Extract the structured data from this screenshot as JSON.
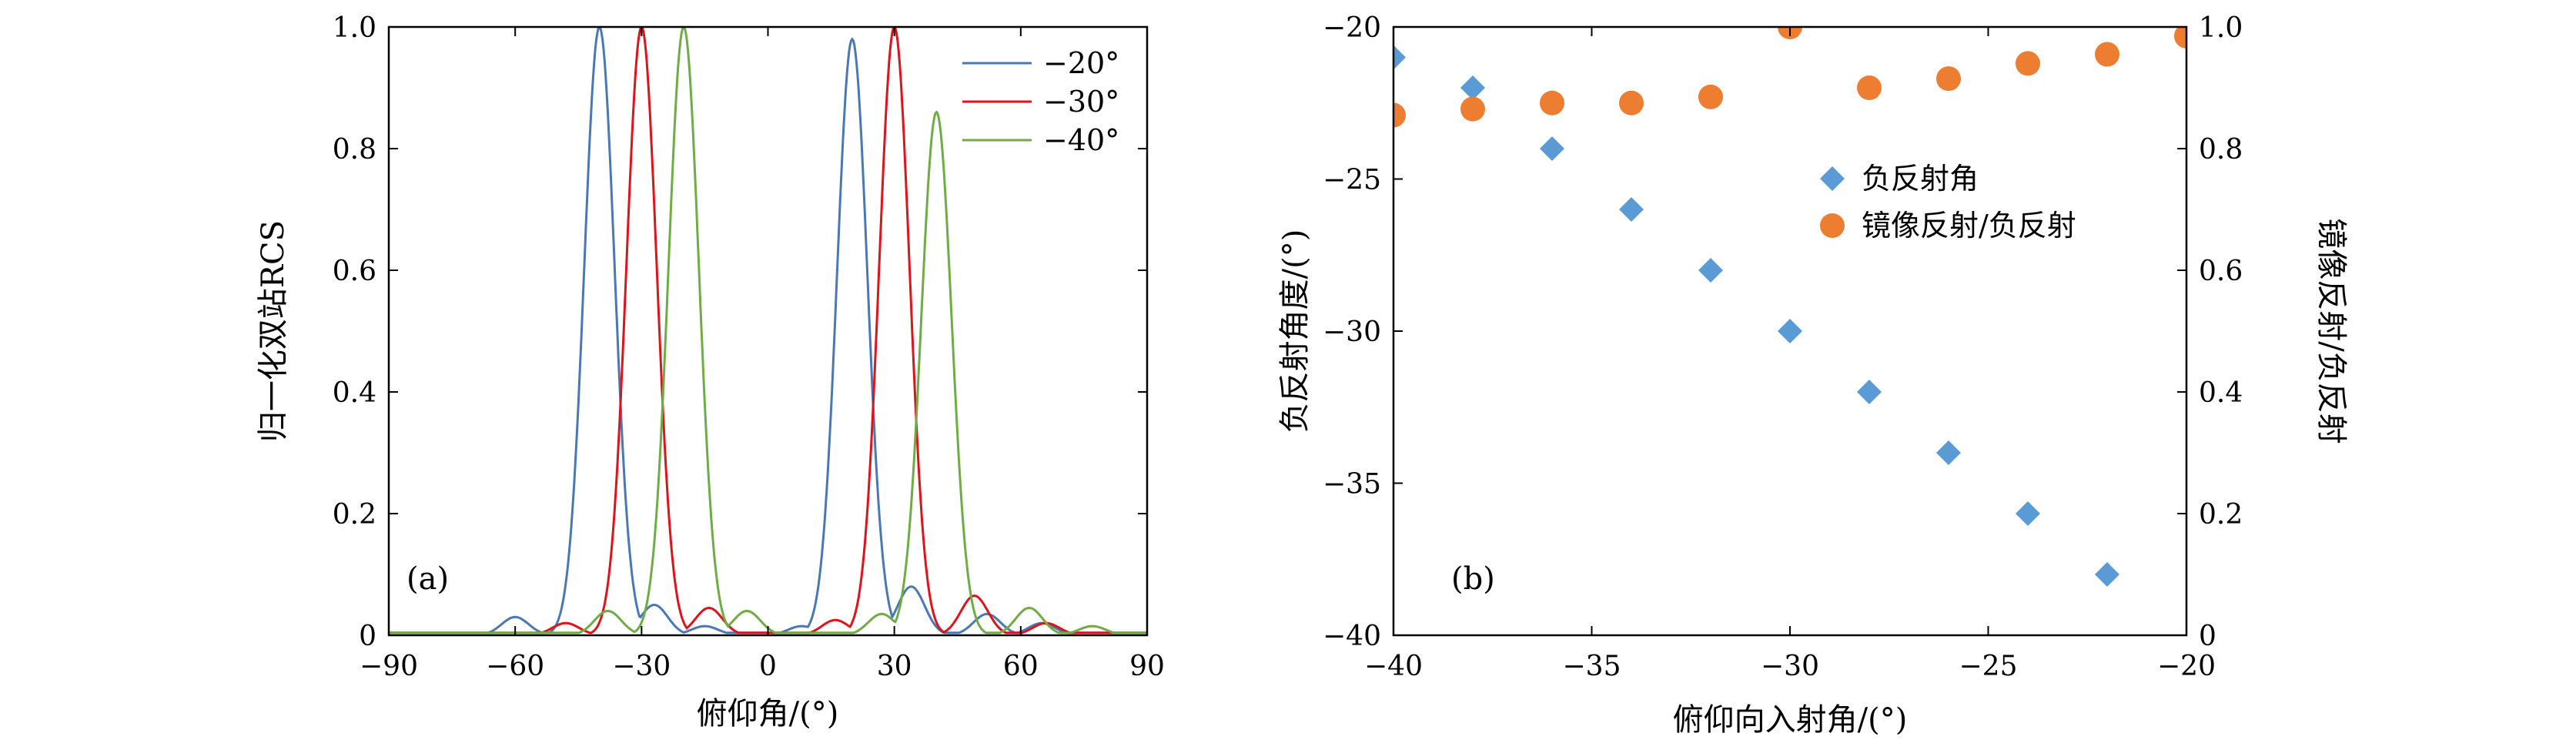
{
  "colors": {
    "blue": "#4a78b4",
    "red": "#e0121a",
    "green": "#6fac45",
    "blue_marker": "#5b9bd5",
    "orange_marker": "#ed7d31"
  },
  "chart_data": [
    {
      "type": "line",
      "panel_label": "(a)",
      "xlabel": "俯仰角/(°)",
      "ylabel": "归一化双站RCS",
      "xlim": [
        -90,
        90
      ],
      "ylim": [
        0,
        1.0
      ],
      "xticks": [
        -90,
        -60,
        -30,
        0,
        30,
        60,
        90
      ],
      "xtick_labels": [
        "−90",
        "−60",
        "−30",
        "0",
        "30",
        "60",
        "90"
      ],
      "yticks": [
        0,
        0.2,
        0.4,
        0.6,
        0.8,
        1.0
      ],
      "ytick_labels": [
        "0",
        "0.2",
        "0.4",
        "0.6",
        "0.8",
        "1.0"
      ],
      "legend_position": "top-right",
      "series": [
        {
          "name": "−20°",
          "color": "#4a78b4",
          "peaks": [
            [
              -40,
              1.0
            ],
            [
              20,
              0.98
            ]
          ],
          "sidelobes": [
            [
              -60,
              0.03
            ],
            [
              -27,
              0.05
            ],
            [
              -15,
              0.015
            ],
            [
              8,
              0.015
            ],
            [
              34,
              0.08
            ],
            [
              52,
              0.035
            ],
            [
              65,
              0.02
            ]
          ]
        },
        {
          "name": "−30°",
          "color": "#e0121a",
          "peaks": [
            [
              -30,
              1.0
            ],
            [
              30,
              1.0
            ]
          ],
          "sidelobes": [
            [
              -48,
              0.02
            ],
            [
              -14,
              0.045
            ],
            [
              16,
              0.025
            ],
            [
              49,
              0.065
            ],
            [
              66,
              0.02
            ]
          ]
        },
        {
          "name": "−40°",
          "color": "#6fac45",
          "peaks": [
            [
              -20,
              1.0
            ],
            [
              40,
              0.86
            ]
          ],
          "sidelobes": [
            [
              -38,
              0.04
            ],
            [
              -5,
              0.04
            ],
            [
              27,
              0.035
            ],
            [
              62,
              0.045
            ],
            [
              77,
              0.015
            ]
          ]
        }
      ]
    },
    {
      "type": "scatter",
      "panel_label": "(b)",
      "xlabel": "俯仰向入射角/(°)",
      "ylabel": "负反射角度/(°)",
      "y2label": "镜像反射/负反射",
      "xlim": [
        -40,
        -20
      ],
      "ylim": [
        -40,
        -20
      ],
      "y2lim": [
        0,
        1.0
      ],
      "xticks": [
        -40,
        -35,
        -30,
        -25,
        -20
      ],
      "xtick_labels": [
        "−40",
        "−35",
        "−30",
        "−25",
        "−20"
      ],
      "yticks": [
        -40,
        -35,
        -30,
        -25,
        -20
      ],
      "ytick_labels": [
        "−40",
        "−35",
        "−30",
        "−25",
        "−20"
      ],
      "y2ticks": [
        0,
        0.2,
        0.4,
        0.6,
        0.8,
        1.0
      ],
      "y2tick_labels": [
        "0",
        "0.2",
        "0.4",
        "0.6",
        "0.8",
        "1.0"
      ],
      "legend_position": "center-right",
      "series": [
        {
          "name": "负反射角",
          "axis": "left",
          "marker": "diamond",
          "color": "#5b9bd5",
          "x": [
            -40,
            -38,
            -36,
            -34,
            -32,
            -30,
            -28,
            -26,
            -24,
            -22
          ],
          "y": [
            -21,
            -22,
            -24,
            -26,
            -28,
            -30,
            -32,
            -34,
            -36,
            -38
          ]
        },
        {
          "name": "镜像反射/负反射",
          "axis": "right",
          "marker": "circle",
          "color": "#ed7d31",
          "x": [
            -40,
            -38,
            -36,
            -34,
            -32,
            -30,
            -28,
            -26,
            -24,
            -22,
            -20
          ],
          "y": [
            0.855,
            0.865,
            0.875,
            0.875,
            0.885,
            1.0,
            0.9,
            0.915,
            0.94,
            0.955,
            0.985
          ]
        }
      ]
    }
  ]
}
